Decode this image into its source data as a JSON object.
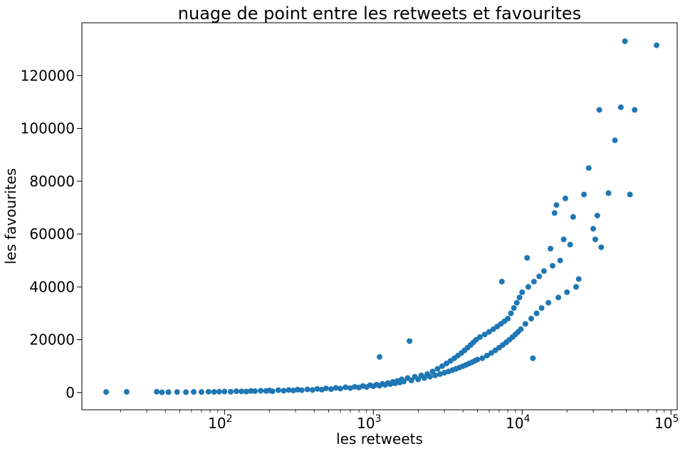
{
  "chart_data": {
    "type": "scatter",
    "title": "nuage de point entre les retweets et favourites",
    "xlabel": "les retweets",
    "ylabel": "les favourites",
    "xscale": "log",
    "xlim": [
      11,
      110000
    ],
    "ylim": [
      -6500,
      140000
    ],
    "x_ticks": [
      {
        "value": 100,
        "base": "10",
        "exp": "2"
      },
      {
        "value": 1000,
        "base": "10",
        "exp": "3"
      },
      {
        "value": 10000,
        "base": "10",
        "exp": "4"
      },
      {
        "value": 100000,
        "base": "10",
        "exp": "5"
      }
    ],
    "y_ticks": [
      0,
      20000,
      40000,
      60000,
      80000,
      100000,
      120000
    ],
    "color": "#1f77b4",
    "legend": "none",
    "grid": false,
    "points": [
      [
        16,
        200
      ],
      [
        22,
        250
      ],
      [
        35,
        300
      ],
      [
        38,
        100
      ],
      [
        42,
        150
      ],
      [
        48,
        200
      ],
      [
        55,
        150
      ],
      [
        62,
        250
      ],
      [
        70,
        200
      ],
      [
        78,
        300
      ],
      [
        85,
        250
      ],
      [
        92,
        350
      ],
      [
        100,
        400
      ],
      [
        110,
        300
      ],
      [
        120,
        500
      ],
      [
        130,
        450
      ],
      [
        140,
        400
      ],
      [
        150,
        600
      ],
      [
        160,
        550
      ],
      [
        175,
        700
      ],
      [
        190,
        600
      ],
      [
        200,
        800
      ],
      [
        210,
        500
      ],
      [
        230,
        900
      ],
      [
        250,
        700
      ],
      [
        270,
        1000
      ],
      [
        290,
        800
      ],
      [
        310,
        1100
      ],
      [
        330,
        900
      ],
      [
        360,
        1200
      ],
      [
        390,
        1000
      ],
      [
        420,
        1400
      ],
      [
        450,
        1100
      ],
      [
        480,
        1600
      ],
      [
        520,
        1300
      ],
      [
        560,
        1800
      ],
      [
        600,
        1500
      ],
      [
        650,
        2000
      ],
      [
        700,
        1700
      ],
      [
        750,
        2200
      ],
      [
        800,
        1900
      ],
      [
        850,
        2500
      ],
      [
        900,
        2100
      ],
      [
        950,
        2800
      ],
      [
        1000,
        2400
      ],
      [
        1050,
        3000
      ],
      [
        1100,
        2600
      ],
      [
        1150,
        3300
      ],
      [
        1100,
        13500
      ],
      [
        1200,
        2900
      ],
      [
        1250,
        3600
      ],
      [
        1300,
        3200
      ],
      [
        1350,
        4000
      ],
      [
        1400,
        3500
      ],
      [
        1450,
        4400
      ],
      [
        1500,
        3800
      ],
      [
        1550,
        5000
      ],
      [
        1600,
        4200
      ],
      [
        1700,
        5500
      ],
      [
        1750,
        19500
      ],
      [
        1800,
        4600
      ],
      [
        1900,
        6000
      ],
      [
        2000,
        5000
      ],
      [
        2100,
        6500
      ],
      [
        2200,
        5500
      ],
      [
        2300,
        7000
      ],
      [
        2400,
        6000
      ],
      [
        2500,
        8000
      ],
      [
        2600,
        6500
      ],
      [
        2700,
        9000
      ],
      [
        2800,
        7000
      ],
      [
        2900,
        10000
      ],
      [
        3000,
        7500
      ],
      [
        3100,
        11000
      ],
      [
        3200,
        8000
      ],
      [
        3300,
        12000
      ],
      [
        3400,
        8500
      ],
      [
        3500,
        13000
      ],
      [
        3600,
        9000
      ],
      [
        3700,
        14000
      ],
      [
        3800,
        9500
      ],
      [
        3900,
        15000
      ],
      [
        4000,
        10000
      ],
      [
        4100,
        16000
      ],
      [
        4200,
        10500
      ],
      [
        4300,
        17000
      ],
      [
        4400,
        11000
      ],
      [
        4500,
        18000
      ],
      [
        4600,
        11500
      ],
      [
        4700,
        19000
      ],
      [
        4800,
        12000
      ],
      [
        4900,
        20000
      ],
      [
        5000,
        12500
      ],
      [
        5200,
        21000
      ],
      [
        5400,
        13000
      ],
      [
        5600,
        22000
      ],
      [
        5800,
        14000
      ],
      [
        6000,
        23000
      ],
      [
        6200,
        15000
      ],
      [
        6400,
        24000
      ],
      [
        6600,
        16000
      ],
      [
        6800,
        25000
      ],
      [
        7000,
        17000
      ],
      [
        7200,
        26000
      ],
      [
        7400,
        18000
      ],
      [
        7600,
        27000
      ],
      [
        7800,
        19000
      ],
      [
        8000,
        28000
      ],
      [
        7300,
        42000
      ],
      [
        8200,
        20000
      ],
      [
        8400,
        30000
      ],
      [
        8600,
        21000
      ],
      [
        8800,
        32000
      ],
      [
        9000,
        22000
      ],
      [
        9200,
        34000
      ],
      [
        9400,
        23000
      ],
      [
        9600,
        36000
      ],
      [
        9800,
        24000
      ],
      [
        10000,
        38000
      ],
      [
        10500,
        26000
      ],
      [
        11000,
        40000
      ],
      [
        10800,
        51000
      ],
      [
        11500,
        28000
      ],
      [
        11800,
        13000
      ],
      [
        12000,
        42000
      ],
      [
        12500,
        30000
      ],
      [
        13000,
        44000
      ],
      [
        13500,
        32000
      ],
      [
        14000,
        46000
      ],
      [
        15000,
        34000
      ],
      [
        15500,
        54500
      ],
      [
        16000,
        48000
      ],
      [
        16500,
        68000
      ],
      [
        17000,
        71000
      ],
      [
        17500,
        36000
      ],
      [
        18000,
        50000
      ],
      [
        19000,
        58000
      ],
      [
        19500,
        73500
      ],
      [
        20000,
        38000
      ],
      [
        21000,
        56000
      ],
      [
        22000,
        66500
      ],
      [
        23000,
        40000
      ],
      [
        24000,
        43000
      ],
      [
        26000,
        75000
      ],
      [
        28000,
        85000
      ],
      [
        30000,
        62000
      ],
      [
        31000,
        58000
      ],
      [
        32000,
        67000
      ],
      [
        33000,
        107000
      ],
      [
        34000,
        55000
      ],
      [
        38000,
        75500
      ],
      [
        42000,
        95500
      ],
      [
        46000,
        108000
      ],
      [
        49000,
        133000
      ],
      [
        53000,
        75000
      ],
      [
        57000,
        107000
      ],
      [
        80000,
        131500
      ]
    ]
  }
}
